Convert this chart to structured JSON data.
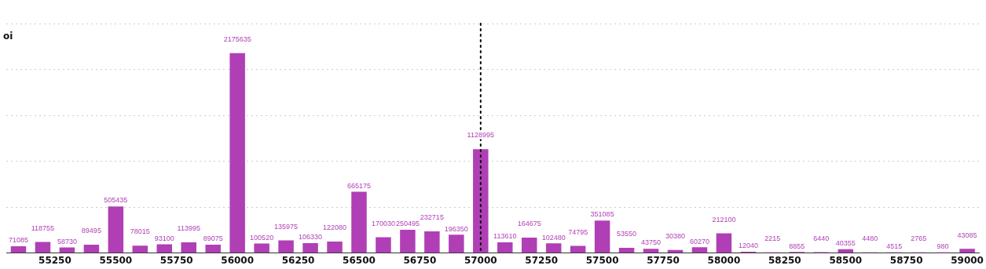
{
  "chart_data": {
    "type": "bar",
    "ylabel": "oi",
    "x": [
      55100,
      55200,
      55300,
      55400,
      55500,
      55600,
      55700,
      55800,
      55900,
      56000,
      56100,
      56200,
      56300,
      56400,
      56500,
      56600,
      56700,
      56800,
      56900,
      57000,
      57100,
      57200,
      57300,
      57400,
      57500,
      57600,
      57700,
      57800,
      57900,
      58000,
      58100,
      58200,
      58300,
      58400,
      58500,
      58600,
      58700,
      58800,
      58900,
      59000
    ],
    "values": [
      71085,
      118755,
      58730,
      89495,
      505435,
      78015,
      93100,
      113995,
      89075,
      2175635,
      100520,
      135975,
      106330,
      122080,
      665175,
      170030,
      250495,
      232715,
      196350,
      1128995,
      113610,
      164675,
      102480,
      74795,
      351085,
      53550,
      43750,
      30380,
      60270,
      212100,
      12040,
      2215,
      8855,
      6440,
      40355,
      4480,
      4515,
      2765,
      980,
      43085
    ],
    "color": "#b03fb5",
    "xlim": [
      55050,
      59050
    ],
    "xticks": [
      55250,
      55500,
      55750,
      56000,
      56250,
      56500,
      56750,
      57000,
      57250,
      57500,
      57750,
      58000,
      58250,
      58500,
      58750,
      59000
    ],
    "tick_labels": "x",
    "grid": "y",
    "legend": false,
    "data_labels": true,
    "ref_lines": [
      {
        "axis": "x",
        "value": 57000,
        "color": "#000000",
        "line_style": "dotted"
      }
    ]
  }
}
